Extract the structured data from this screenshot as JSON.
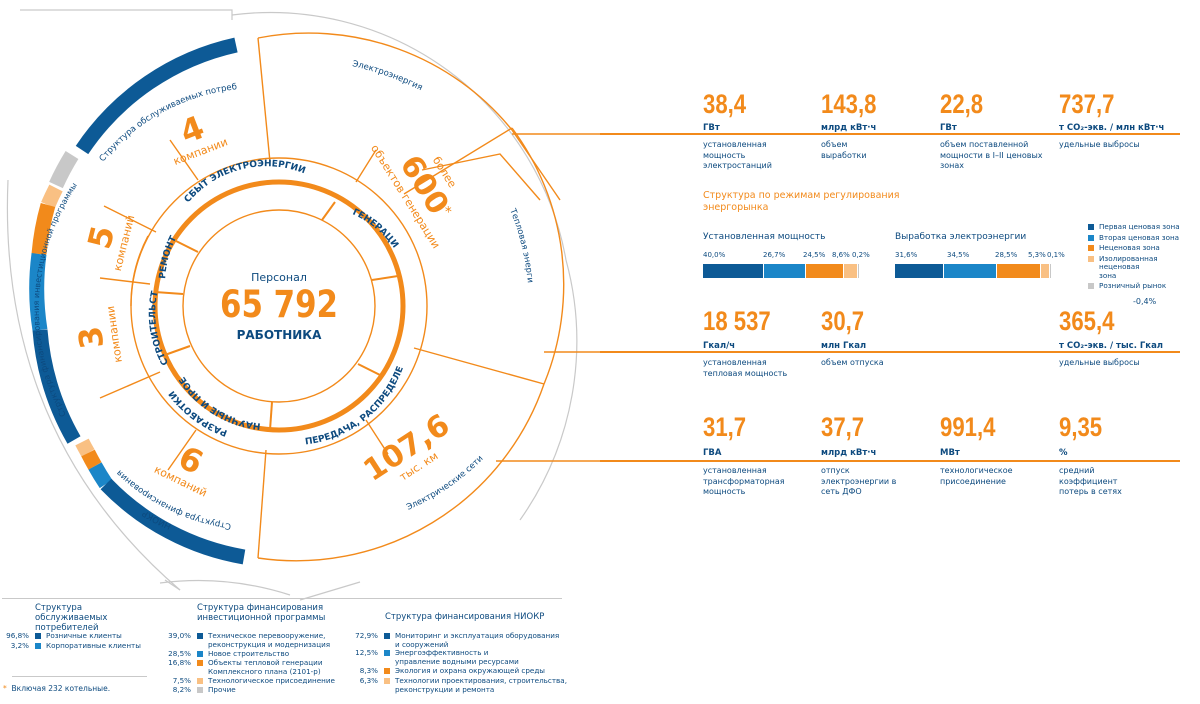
{
  "center": {
    "label": "Персонал",
    "value": "65 792",
    "unit": "РАБОТНИКА"
  },
  "ring_labels": {
    "sbyt": "СБЫТ ЭЛЕКТРОЭНЕРГИИ",
    "remont": "РЕМОНТ",
    "stroitelstvo": "СТРОИТЕЛЬСТВО",
    "niokr_line1": "НАУЧНЫЕ И ПРОЕКТНЫЕ",
    "niokr_line2": "РАЗРАБОТКИ",
    "generaciya": "ГЕНЕРАЦИЯ",
    "peredacha": "ПЕРЕДАЧА, РАСПРЕДЕЛЕНИЕ"
  },
  "counts": [
    {
      "number": "4",
      "label": "компании"
    },
    {
      "number": "5",
      "label": "компаний"
    },
    {
      "number": "3",
      "label": "компании"
    },
    {
      "number": "6",
      "label": "компаний"
    }
  ],
  "generation_objects": {
    "number": "600",
    "prefix": "более",
    "label": "объектов генерации",
    "footnote_mark": "*"
  },
  "networks": {
    "number": "107,6",
    "label": "тыс. км"
  },
  "outer_labels": {
    "electro": "Электроэнергия",
    "teplo": "Тепловая энергия",
    "seti": "Электрические сети"
  },
  "arc_labels": {
    "consumers": "Структура обслуживаемых потребителей",
    "investment": "Структура финансирования инвестиционной программы",
    "niokr_line1": "Структура финансирования",
    "niokr_line2": "НИОКР"
  },
  "colors": {
    "orange": "#f28a1b",
    "dark_blue": "#0d5a96",
    "blue": "#1b86c8",
    "light_orange": "#f9c083",
    "gray": "#c8c8c8",
    "text_blue": "#0d4a7f"
  },
  "electricity_metrics": [
    {
      "value": "38,4",
      "unit": "ГВт",
      "desc": "установленная мощность электростанций"
    },
    {
      "value": "143,8",
      "unit": "млрд кВт·ч",
      "desc": "объем выработки"
    },
    {
      "value": "22,8",
      "unit": "ГВт",
      "desc": "объем поставленной мощности в I–II ценовых зонах"
    },
    {
      "value": "737,7",
      "unit": "т CO₂-экв. / млн кВт·ч",
      "desc": "удельные выбросы"
    }
  ],
  "regime": {
    "title": "Структура по режимам регулирования энергорынка",
    "installed": {
      "title": "Установленная мощность",
      "values": [
        40.0,
        26.7,
        24.5,
        8.6,
        0.2
      ],
      "labels": [
        "40,0%",
        "26,7%",
        "24,5%",
        "8,6%",
        "0,2%"
      ]
    },
    "generation": {
      "title": "Выработка электроэнергии",
      "values": [
        31.6,
        34.5,
        28.5,
        5.3,
        0.1
      ],
      "labels": [
        "31,6%",
        "34,5%",
        "28,5%",
        "5,3%",
        "0,1%"
      ]
    },
    "legend": [
      "Первая ценовая зона",
      "Вторая ценовая зона",
      "Неценовая зона",
      "Изолированная неценовая зона",
      "Розничный рынок"
    ],
    "change": "-0,4%"
  },
  "heat_metrics": [
    {
      "value": "18 537",
      "unit": "Гкал/ч",
      "desc": "установленная тепловая мощность"
    },
    {
      "value": "30,7",
      "unit": "млн Гкал",
      "desc": "объем отпуска"
    },
    {
      "value": "365,4",
      "unit": "т CO₂-экв. / тыс. Гкал",
      "desc": "удельные выбросы"
    }
  ],
  "network_metrics": [
    {
      "value": "31,7",
      "unit": "ГВА",
      "desc": "установленная трансформаторная мощность"
    },
    {
      "value": "37,7",
      "unit": "млрд кВт·ч",
      "desc": "отпуск электроэнергии в сеть ДФО"
    },
    {
      "value": "991,4",
      "unit": "МВт",
      "desc": "технологическое присоединение"
    },
    {
      "value": "9,35",
      "unit": "%",
      "desc": "средний коэффициент потерь в сетях"
    }
  ],
  "bottom_legend": {
    "consumers": {
      "title": "Структура обслуживаемых потребителей",
      "rows": [
        {
          "value": "96,8%",
          "label": "Розничные клиенты"
        },
        {
          "value": "3,2%",
          "label": "Корпоративные клиенты"
        }
      ]
    },
    "investment": {
      "title": "Структура финансирования инвестиционной программы",
      "rows": [
        {
          "value": "39,0%",
          "label": "Техническое перевооружение, реконструкция и модернизация"
        },
        {
          "value": "28,5%",
          "label": "Новое строительство"
        },
        {
          "value": "16,8%",
          "label": "Объекты тепловой генерации Комплексного плана (2101-р)"
        },
        {
          "value": "7,5%",
          "label": "Технологическое присоединение"
        },
        {
          "value": "8,2%",
          "label": "Прочие"
        }
      ]
    },
    "niokr": {
      "title": "Структура финансирования НИОКР",
      "rows": [
        {
          "value": "72,9%",
          "label": "Мониторинг и эксплуатация оборудования и сооружений"
        },
        {
          "value": "12,5%",
          "label": "Энергоэффективность и управление водными ресурсами"
        },
        {
          "value": "8,3%",
          "label": "Экология и охрана окружающей среды"
        },
        {
          "value": "6,3%",
          "label": "Технологии проектирования, строительства, реконструкции и ремонта"
        }
      ]
    },
    "footnote": "Включая 232 котельные."
  }
}
